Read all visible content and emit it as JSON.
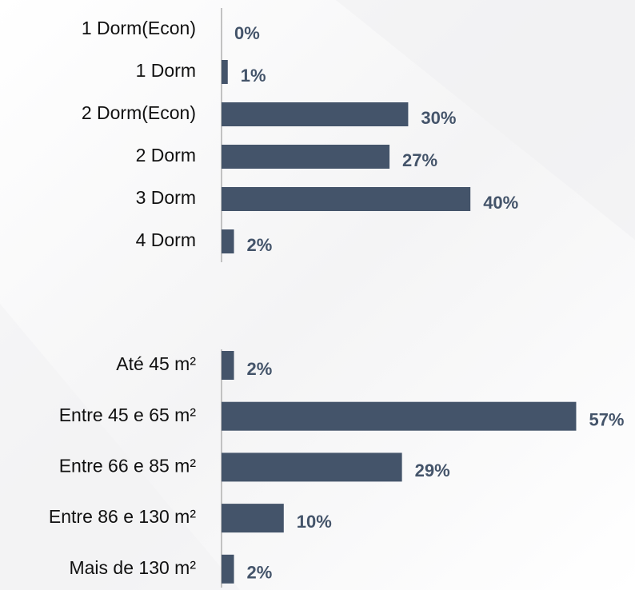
{
  "chart_data": [
    {
      "type": "bar",
      "orientation": "horizontal",
      "color": "#44546a",
      "categories": [
        "1 Dorm(Econ)",
        "1 Dorm",
        "2 Dorm(Econ)",
        "2 Dorm",
        "3 Dorm",
        "4 Dorm"
      ],
      "values": [
        0,
        1,
        30,
        27,
        40,
        2
      ],
      "value_labels": [
        "0%",
        "1%",
        "30%",
        "27%",
        "40%",
        "2%"
      ]
    },
    {
      "type": "bar",
      "orientation": "horizontal",
      "color": "#44546a",
      "categories": [
        "Até 45 m²",
        "Entre 45 e 65 m²",
        "Entre 66 e 85 m²",
        "Entre 86 e 130 m²",
        "Mais de 130 m²"
      ],
      "values": [
        2,
        57,
        29,
        10,
        2
      ],
      "value_labels": [
        "2%",
        "57%",
        "29%",
        "10%",
        "2%"
      ]
    }
  ]
}
